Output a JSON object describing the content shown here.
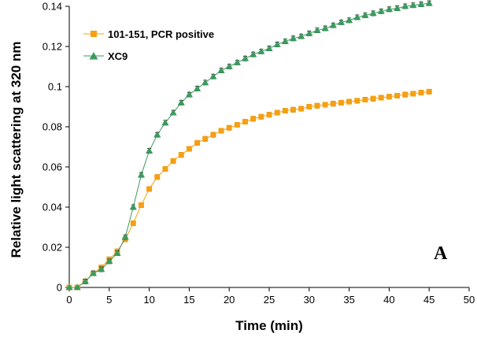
{
  "chart_data": {
    "type": "line",
    "xlabel": "Time (min)",
    "ylabel": "Relative light scattering at 320 nm",
    "xlim": [
      0,
      50
    ],
    "ylim": [
      0,
      0.14
    ],
    "xticks": [
      "0",
      "5",
      "10",
      "15",
      "20",
      "25",
      "30",
      "35",
      "40",
      "45",
      "50"
    ],
    "yticks": [
      "0",
      "0.02",
      "0.04",
      "0.06",
      "0.08",
      "0.1",
      "0.12",
      "0.14"
    ],
    "panel_label": "A",
    "legend_position": "top-left",
    "grid": false,
    "series": [
      {
        "name": "101-151, PCR positive",
        "color": "#f5a011",
        "marker": "square",
        "error_bars": true,
        "points": [
          [
            0,
            0
          ],
          [
            1,
            0
          ],
          [
            2,
            0.003
          ],
          [
            3,
            0.007
          ],
          [
            4,
            0.01
          ],
          [
            5,
            0.014
          ],
          [
            6,
            0.018
          ],
          [
            7,
            0.024
          ],
          [
            8,
            0.032
          ],
          [
            9,
            0.041
          ],
          [
            10,
            0.049
          ],
          [
            11,
            0.055
          ],
          [
            12,
            0.059
          ],
          [
            13,
            0.063
          ],
          [
            14,
            0.066
          ],
          [
            15,
            0.069
          ],
          [
            16,
            0.072
          ],
          [
            17,
            0.074
          ],
          [
            18,
            0.076
          ],
          [
            19,
            0.078
          ],
          [
            20,
            0.0795
          ],
          [
            21,
            0.081
          ],
          [
            22,
            0.0825
          ],
          [
            23,
            0.084
          ],
          [
            24,
            0.085
          ],
          [
            25,
            0.086
          ],
          [
            26,
            0.087
          ],
          [
            27,
            0.088
          ],
          [
            28,
            0.0885
          ],
          [
            29,
            0.089
          ],
          [
            30,
            0.09
          ],
          [
            31,
            0.0905
          ],
          [
            32,
            0.091
          ],
          [
            33,
            0.0915
          ],
          [
            34,
            0.092
          ],
          [
            35,
            0.0925
          ],
          [
            36,
            0.093
          ],
          [
            37,
            0.0935
          ],
          [
            38,
            0.094
          ],
          [
            39,
            0.0945
          ],
          [
            40,
            0.095
          ],
          [
            41,
            0.0955
          ],
          [
            42,
            0.096
          ],
          [
            43,
            0.0965
          ],
          [
            44,
            0.097
          ],
          [
            45,
            0.0975
          ]
        ]
      },
      {
        "name": "XC9",
        "color": "#3c9a5f",
        "marker": "triangle",
        "error_bars": true,
        "points": [
          [
            0,
            0
          ],
          [
            1,
            0
          ],
          [
            2,
            0.003
          ],
          [
            3,
            0.007
          ],
          [
            4,
            0.009
          ],
          [
            5,
            0.013
          ],
          [
            6,
            0.017
          ],
          [
            7,
            0.025
          ],
          [
            8,
            0.04
          ],
          [
            9,
            0.056
          ],
          [
            10,
            0.068
          ],
          [
            11,
            0.076
          ],
          [
            12,
            0.082
          ],
          [
            13,
            0.087
          ],
          [
            14,
            0.092
          ],
          [
            15,
            0.096
          ],
          [
            16,
            0.099
          ],
          [
            17,
            0.102
          ],
          [
            18,
            0.105
          ],
          [
            19,
            0.108
          ],
          [
            20,
            0.11
          ],
          [
            21,
            0.112
          ],
          [
            22,
            0.114
          ],
          [
            23,
            0.116
          ],
          [
            24,
            0.1175
          ],
          [
            25,
            0.119
          ],
          [
            26,
            0.121
          ],
          [
            27,
            0.1225
          ],
          [
            28,
            0.124
          ],
          [
            29,
            0.125
          ],
          [
            30,
            0.1265
          ],
          [
            31,
            0.128
          ],
          [
            32,
            0.129
          ],
          [
            33,
            0.1305
          ],
          [
            34,
            0.132
          ],
          [
            35,
            0.133
          ],
          [
            36,
            0.1345
          ],
          [
            37,
            0.1355
          ],
          [
            38,
            0.1365
          ],
          [
            39,
            0.1375
          ],
          [
            40,
            0.1385
          ],
          [
            41,
            0.139
          ],
          [
            42,
            0.14
          ],
          [
            43,
            0.1405
          ],
          [
            44,
            0.141
          ],
          [
            45,
            0.1415
          ]
        ]
      }
    ]
  }
}
